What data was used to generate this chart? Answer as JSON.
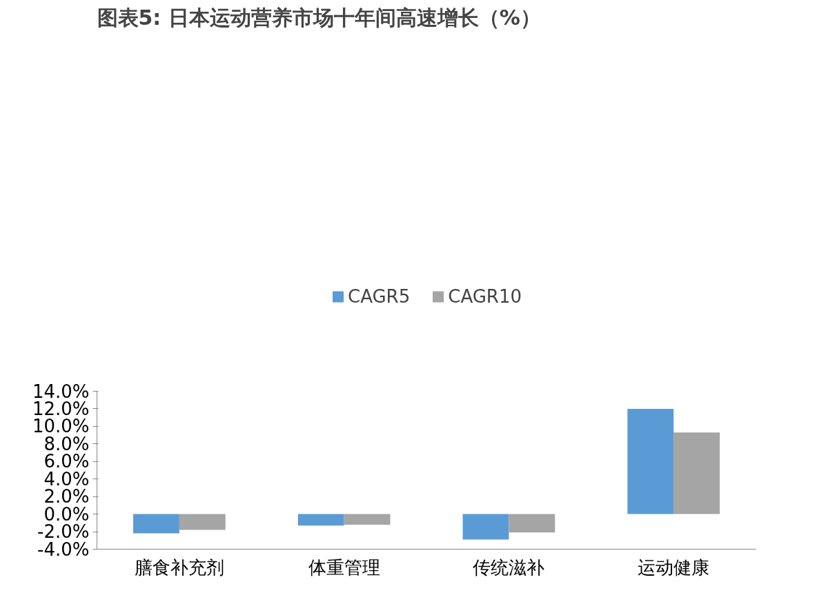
{
  "chart_data": {
    "type": "bar",
    "title": "图表5:  日本运动营养市场十年间高速增长（%）",
    "categories": [
      "膳食补充剂",
      "体重管理",
      "传统滋补",
      "运动健康"
    ],
    "series": [
      {
        "name": "CAGR5",
        "color": "#5b9bd5",
        "values": [
          -2.2,
          -1.3,
          -2.9,
          12.0
        ]
      },
      {
        "name": "CAGR10",
        "color": "#a5a5a5",
        "values": [
          -1.8,
          -1.2,
          -2.1,
          9.3
        ]
      }
    ],
    "ylim": [
      -4,
      14
    ],
    "yticks": [
      {
        "value": -4,
        "label": "-4.0%"
      },
      {
        "value": -2,
        "label": "-2.0%"
      },
      {
        "value": 0,
        "label": "0.0%"
      },
      {
        "value": 2,
        "label": "2.0%"
      },
      {
        "value": 4,
        "label": "4.0%"
      },
      {
        "value": 6,
        "label": "6.0%"
      },
      {
        "value": 8,
        "label": "8.0%"
      },
      {
        "value": 10,
        "label": "10.0%"
      },
      {
        "value": 12,
        "label": "12.0%"
      },
      {
        "value": 14,
        "label": "14.0%"
      }
    ],
    "grid": false,
    "legend": "top"
  }
}
